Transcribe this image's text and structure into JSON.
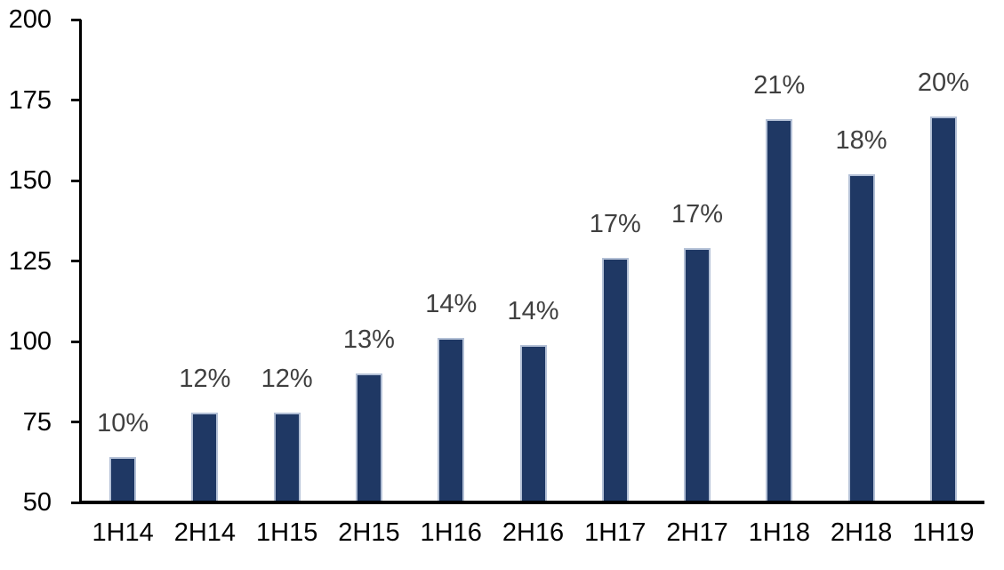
{
  "chart_data": {
    "type": "bar",
    "title": "",
    "xlabel": "",
    "ylabel": "",
    "categories": [
      "1H14",
      "2H14",
      "1H15",
      "2H15",
      "1H16",
      "2H16",
      "1H17",
      "2H17",
      "1H18",
      "2H18",
      "1H19"
    ],
    "values": [
      64,
      78,
      78,
      90,
      101,
      99,
      126,
      129,
      169,
      152,
      170
    ],
    "bar_labels": [
      "10%",
      "12%",
      "12%",
      "13%",
      "14%",
      "14%",
      "17%",
      "17%",
      "21%",
      "18%",
      "20%"
    ],
    "y_ticks": [
      50,
      75,
      100,
      125,
      150,
      175,
      200
    ],
    "ylim": [
      50,
      200
    ],
    "grid": false,
    "legend": null,
    "colors": {
      "bar_fill": "#1f3864",
      "bar_border": "#b3c0d6",
      "data_label": "#404040",
      "axis": "#000000",
      "tick_label": "#000000",
      "background": "#ffffff"
    }
  }
}
